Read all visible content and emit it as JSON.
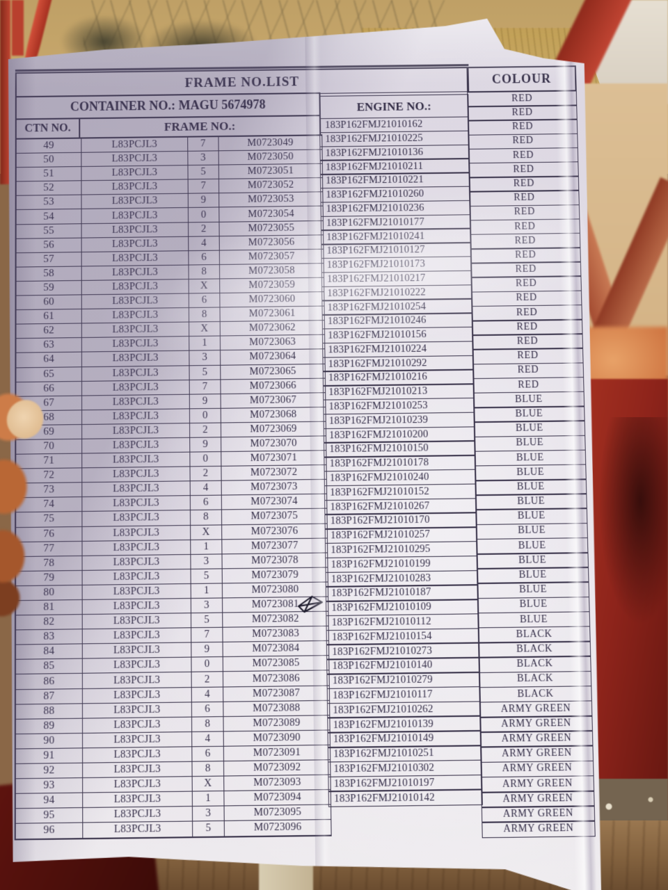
{
  "document": {
    "title": "FRAME NO.LIST",
    "container_no_label": "CONTAINER NO.:",
    "container_no": "MAGU 5674978",
    "ctn_header": "CTN NO.",
    "frame_header": "FRAME NO.:",
    "engine_header": "ENGINE NO.:",
    "colour_header": "COLOUR",
    "first_colour_cell": "RED",
    "extra_colour_cells": [
      "ARMY GREEN",
      "ARMY GREEN"
    ],
    "pen_mark_row": "81",
    "rows": [
      {
        "ctn": "49",
        "prefix": "L83PCJL3",
        "check": "7",
        "frame": "M0723049",
        "engine": "183P162FMJ21010162",
        "colour": "RED"
      },
      {
        "ctn": "50",
        "prefix": "L83PCJL3",
        "check": "3",
        "frame": "M0723050",
        "engine": "183P162FMJ21010225",
        "colour": "RED"
      },
      {
        "ctn": "51",
        "prefix": "L83PCJL3",
        "check": "5",
        "frame": "M0723051",
        "engine": "183P162FMJ21010136",
        "colour": "RED"
      },
      {
        "ctn": "52",
        "prefix": "L83PCJL3",
        "check": "7",
        "frame": "M0723052",
        "engine": "183P162FMJ21010211",
        "colour": "RED"
      },
      {
        "ctn": "53",
        "prefix": "L83PCJL3",
        "check": "9",
        "frame": "M0723053",
        "engine": "183P162FMJ21010221",
        "colour": "RED"
      },
      {
        "ctn": "54",
        "prefix": "L83PCJL3",
        "check": "0",
        "frame": "M0723054",
        "engine": "183P162FMJ21010260",
        "colour": "RED"
      },
      {
        "ctn": "55",
        "prefix": "L83PCJL3",
        "check": "2",
        "frame": "M0723055",
        "engine": "183P162FMJ21010236",
        "colour": "RED"
      },
      {
        "ctn": "56",
        "prefix": "L83PCJL3",
        "check": "4",
        "frame": "M0723056",
        "engine": "183P162FMJ21010177",
        "colour": "RED"
      },
      {
        "ctn": "57",
        "prefix": "L83PCJL3",
        "check": "6",
        "frame": "M0723057",
        "engine": "183P162FMJ21010241",
        "colour": "RED"
      },
      {
        "ctn": "58",
        "prefix": "L83PCJL3",
        "check": "8",
        "frame": "M0723058",
        "engine": "183P162FMJ21010127",
        "colour": "RED"
      },
      {
        "ctn": "59",
        "prefix": "L83PCJL3",
        "check": "X",
        "frame": "M0723059",
        "engine": "183P162FMJ21010173",
        "colour": "RED"
      },
      {
        "ctn": "60",
        "prefix": "L83PCJL3",
        "check": "6",
        "frame": "M0723060",
        "engine": "183P162FMJ21010217",
        "colour": "RED"
      },
      {
        "ctn": "61",
        "prefix": "L83PCJL3",
        "check": "8",
        "frame": "M0723061",
        "engine": "183P162FMJ21010222",
        "colour": "RED"
      },
      {
        "ctn": "62",
        "prefix": "L83PCJL3",
        "check": "X",
        "frame": "M0723062",
        "engine": "183P162FMJ21010254",
        "colour": "RED"
      },
      {
        "ctn": "63",
        "prefix": "L83PCJL3",
        "check": "1",
        "frame": "M0723063",
        "engine": "183P162FMJ21010246",
        "colour": "RED"
      },
      {
        "ctn": "64",
        "prefix": "L83PCJL3",
        "check": "3",
        "frame": "M0723064",
        "engine": "183P162FMJ21010156",
        "colour": "RED"
      },
      {
        "ctn": "65",
        "prefix": "L83PCJL3",
        "check": "5",
        "frame": "M0723065",
        "engine": "183P162FMJ21010224",
        "colour": "RED"
      },
      {
        "ctn": "66",
        "prefix": "L83PCJL3",
        "check": "7",
        "frame": "M0723066",
        "engine": "183P162FMJ21010292",
        "colour": "RED"
      },
      {
        "ctn": "67",
        "prefix": "L83PCJL3",
        "check": "9",
        "frame": "M0723067",
        "engine": "183P162FMJ21010216",
        "colour": "RED"
      },
      {
        "ctn": "68",
        "prefix": "L83PCJL3",
        "check": "0",
        "frame": "M0723068",
        "engine": "183P162FMJ21010213",
        "colour": "RED"
      },
      {
        "ctn": "69",
        "prefix": "L83PCJL3",
        "check": "2",
        "frame": "M0723069",
        "engine": "183P162FMJ21010253",
        "colour": "BLUE"
      },
      {
        "ctn": "70",
        "prefix": "L83PCJL3",
        "check": "9",
        "frame": "M0723070",
        "engine": "183P162FMJ21010239",
        "colour": "BLUE"
      },
      {
        "ctn": "71",
        "prefix": "L83PCJL3",
        "check": "0",
        "frame": "M0723071",
        "engine": "183P162FMJ21010200",
        "colour": "BLUE"
      },
      {
        "ctn": "72",
        "prefix": "L83PCJL3",
        "check": "2",
        "frame": "M0723072",
        "engine": "183P162FMJ21010150",
        "colour": "BLUE"
      },
      {
        "ctn": "73",
        "prefix": "L83PCJL3",
        "check": "4",
        "frame": "M0723073",
        "engine": "183P162FMJ21010178",
        "colour": "BLUE"
      },
      {
        "ctn": "74",
        "prefix": "L83PCJL3",
        "check": "6",
        "frame": "M0723074",
        "engine": "183P162FMJ21010240",
        "colour": "BLUE"
      },
      {
        "ctn": "75",
        "prefix": "L83PCJL3",
        "check": "8",
        "frame": "M0723075",
        "engine": "183P162FMJ21010152",
        "colour": "BLUE"
      },
      {
        "ctn": "76",
        "prefix": "L83PCJL3",
        "check": "X",
        "frame": "M0723076",
        "engine": "183P162FMJ21010267",
        "colour": "BLUE"
      },
      {
        "ctn": "77",
        "prefix": "L83PCJL3",
        "check": "1",
        "frame": "M0723077",
        "engine": "183P162FMJ21010170",
        "colour": "BLUE"
      },
      {
        "ctn": "78",
        "prefix": "L83PCJL3",
        "check": "3",
        "frame": "M0723078",
        "engine": "183P162FMJ21010257",
        "colour": "BLUE"
      },
      {
        "ctn": "79",
        "prefix": "L83PCJL3",
        "check": "5",
        "frame": "M0723079",
        "engine": "183P162FMJ21010295",
        "colour": "BLUE"
      },
      {
        "ctn": "80",
        "prefix": "L83PCJL3",
        "check": "1",
        "frame": "M0723080",
        "engine": "183P162FMJ21010199",
        "colour": "BLUE"
      },
      {
        "ctn": "81",
        "prefix": "L83PCJL3",
        "check": "3",
        "frame": "M0723081",
        "engine": "183P162FMJ21010283",
        "colour": "BLUE"
      },
      {
        "ctn": "82",
        "prefix": "L83PCJL3",
        "check": "5",
        "frame": "M0723082",
        "engine": "183P162FMJ21010187",
        "colour": "BLUE"
      },
      {
        "ctn": "83",
        "prefix": "L83PCJL3",
        "check": "7",
        "frame": "M0723083",
        "engine": "183P162FMJ21010109",
        "colour": "BLUE"
      },
      {
        "ctn": "84",
        "prefix": "L83PCJL3",
        "check": "9",
        "frame": "M0723084",
        "engine": "183P162FMJ21010112",
        "colour": "BLUE"
      },
      {
        "ctn": "85",
        "prefix": "L83PCJL3",
        "check": "0",
        "frame": "M0723085",
        "engine": "183P162FMJ21010154",
        "colour": "BLACK"
      },
      {
        "ctn": "86",
        "prefix": "L83PCJL3",
        "check": "2",
        "frame": "M0723086",
        "engine": "183P162FMJ21010273",
        "colour": "BLACK"
      },
      {
        "ctn": "87",
        "prefix": "L83PCJL3",
        "check": "4",
        "frame": "M0723087",
        "engine": "183P162FMJ21010140",
        "colour": "BLACK"
      },
      {
        "ctn": "88",
        "prefix": "L83PCJL3",
        "check": "6",
        "frame": "M0723088",
        "engine": "183P162FMJ21010279",
        "colour": "BLACK"
      },
      {
        "ctn": "89",
        "prefix": "L83PCJL3",
        "check": "8",
        "frame": "M0723089",
        "engine": "183P162FMJ21010117",
        "colour": "BLACK"
      },
      {
        "ctn": "90",
        "prefix": "L83PCJL3",
        "check": "4",
        "frame": "M0723090",
        "engine": "183P162FMJ21010262",
        "colour": "ARMY GREEN"
      },
      {
        "ctn": "91",
        "prefix": "L83PCJL3",
        "check": "6",
        "frame": "M0723091",
        "engine": "183P162FMJ21010139",
        "colour": "ARMY GREEN"
      },
      {
        "ctn": "92",
        "prefix": "L83PCJL3",
        "check": "8",
        "frame": "M0723092",
        "engine": "183P162FMJ21010149",
        "colour": "ARMY GREEN"
      },
      {
        "ctn": "93",
        "prefix": "L83PCJL3",
        "check": "X",
        "frame": "M0723093",
        "engine": "183P162FMJ21010251",
        "colour": "ARMY GREEN"
      },
      {
        "ctn": "94",
        "prefix": "L83PCJL3",
        "check": "1",
        "frame": "M0723094",
        "engine": "183P162FMJ21010302",
        "colour": "ARMY GREEN"
      },
      {
        "ctn": "95",
        "prefix": "L83PCJL3",
        "check": "3",
        "frame": "M0723095",
        "engine": "183P162FMJ21010197",
        "colour": "ARMY GREEN"
      },
      {
        "ctn": "96",
        "prefix": "L83PCJL3",
        "check": "5",
        "frame": "M0723096",
        "engine": "183P162FMJ21010142",
        "colour": "ARMY GREEN"
      }
    ]
  },
  "colors": {
    "table_ink": "#39334a",
    "paper": "#dcd7e2",
    "metal_red": "#a1281b",
    "sand": "#c7a76b",
    "wood": "#8a6747"
  }
}
